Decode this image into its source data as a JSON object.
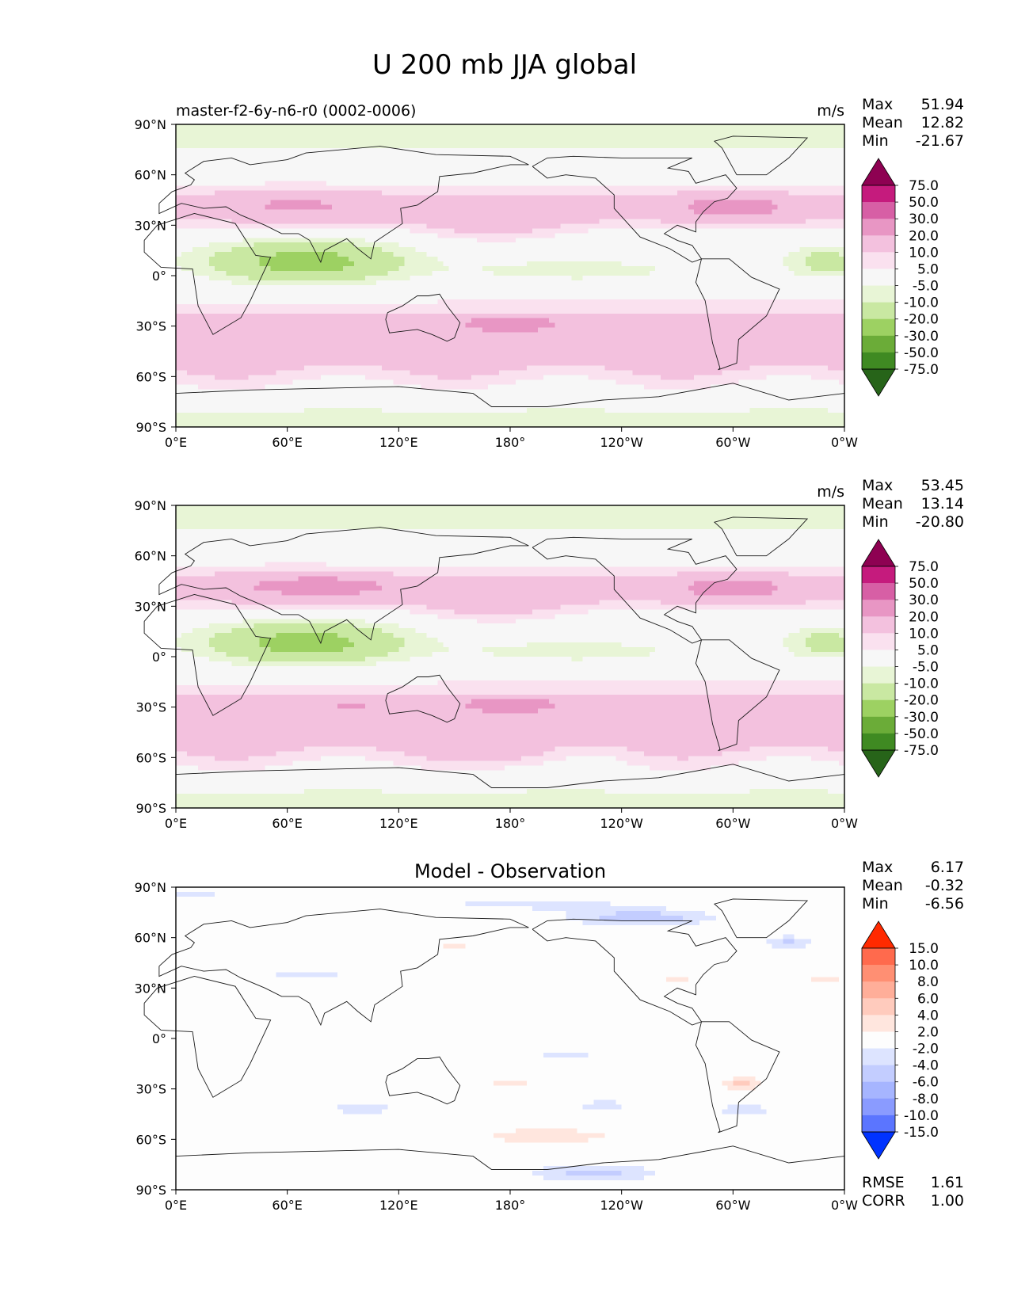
{
  "figure": {
    "title": "U 200 mb JJA global"
  },
  "axis_ticks": {
    "x": [
      "0°E",
      "60°E",
      "120°E",
      "180°",
      "120°W",
      "60°W",
      "0°W"
    ],
    "y": [
      "90°N",
      "60°N",
      "30°N",
      "0°",
      "30°S",
      "60°S",
      "90°S"
    ]
  },
  "chart_data": [
    {
      "type": "heatmap",
      "panel": "test",
      "left_label": "master-f2-6y-n6-r0 (0002-0006)",
      "title": "",
      "units": "m/s",
      "stats": [
        {
          "label": "Max",
          "value": "51.94"
        },
        {
          "label": "Mean",
          "value": "12.82"
        },
        {
          "label": "Min",
          "value": "-21.67"
        }
      ],
      "xlim": [
        0,
        360
      ],
      "ylim": [
        -90,
        90
      ],
      "colorbar": {
        "ticks": [
          "75.0",
          "50.0",
          "30.0",
          "20.0",
          "10.0",
          "5.0",
          "-5.0",
          "-10.0",
          "-20.0",
          "-30.0",
          "-50.0",
          "-75.0"
        ],
        "colors": [
          "#8e0152",
          "#c51b7d",
          "#d75fa5",
          "#e896c4",
          "#f3c1de",
          "#fae1ef",
          "#f7f7f7",
          "#e8f5d6",
          "#c9e8a2",
          "#9dd162",
          "#6bac38",
          "#3f8a22",
          "#276419"
        ]
      },
      "field": "u200_model"
    },
    {
      "type": "heatmap",
      "panel": "reference",
      "left_label": "",
      "title": "",
      "units": "m/s",
      "stats": [
        {
          "label": "Max",
          "value": "53.45"
        },
        {
          "label": "Mean",
          "value": "13.14"
        },
        {
          "label": "Min",
          "value": "-20.80"
        }
      ],
      "xlim": [
        0,
        360
      ],
      "ylim": [
        -90,
        90
      ],
      "colorbar": {
        "ticks": [
          "75.0",
          "50.0",
          "30.0",
          "20.0",
          "10.0",
          "5.0",
          "-5.0",
          "-10.0",
          "-20.0",
          "-30.0",
          "-50.0",
          "-75.0"
        ],
        "colors": [
          "#8e0152",
          "#c51b7d",
          "#d75fa5",
          "#e896c4",
          "#f3c1de",
          "#fae1ef",
          "#f7f7f7",
          "#e8f5d6",
          "#c9e8a2",
          "#9dd162",
          "#6bac38",
          "#3f8a22",
          "#276419"
        ]
      },
      "field": "u200_obs"
    },
    {
      "type": "heatmap",
      "panel": "difference",
      "left_label": "",
      "title": "Model - Observation",
      "units": "",
      "stats": [
        {
          "label": "Max",
          "value": "6.17"
        },
        {
          "label": "Mean",
          "value": "-0.32"
        },
        {
          "label": "Min",
          "value": "-6.56"
        }
      ],
      "bottom_stats": [
        {
          "label": "RMSE",
          "value": "1.61"
        },
        {
          "label": "CORR",
          "value": "1.00"
        }
      ],
      "xlim": [
        0,
        360
      ],
      "ylim": [
        -90,
        90
      ],
      "colorbar": {
        "ticks": [
          "15.0",
          "10.0",
          "8.0",
          "6.0",
          "4.0",
          "2.0",
          "-2.0",
          "-4.0",
          "-6.0",
          "-8.0",
          "-10.0",
          "-15.0"
        ],
        "colors": [
          "#ff2a00",
          "#ff6a4d",
          "#ff8f73",
          "#ffae99",
          "#ffcbbd",
          "#ffe6de",
          "#fdfdfd",
          "#dde4ff",
          "#c3cdff",
          "#a6b5ff",
          "#8a9bff",
          "#5b75ff",
          "#0033ff"
        ]
      },
      "field": "u200_diff"
    }
  ]
}
